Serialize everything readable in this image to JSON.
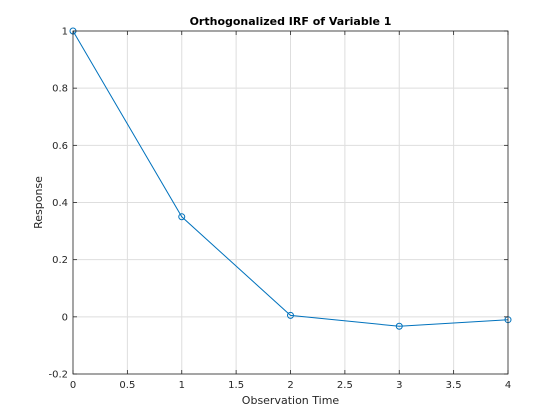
{
  "chart_data": {
    "type": "line",
    "title": "Orthogonalized IRF of Variable 1",
    "xlabel": "Observation Time",
    "ylabel": "Response",
    "x": [
      0,
      1,
      2,
      3,
      4
    ],
    "series": [
      {
        "values": [
          1.0,
          0.35,
          0.005,
          -0.033,
          -0.01
        ],
        "color": "#0072bd",
        "marker": "circle"
      }
    ],
    "xlim": [
      0,
      4
    ],
    "ylim": [
      -0.2,
      1
    ],
    "xticks": [
      0,
      0.5,
      1,
      1.5,
      2,
      2.5,
      3,
      3.5,
      4
    ],
    "xtick_labels": [
      "0",
      "0.5",
      "1",
      "1.5",
      "2",
      "2.5",
      "3",
      "3.5",
      "4"
    ],
    "yticks": [
      -0.2,
      0,
      0.2,
      0.4,
      0.6,
      0.8,
      1
    ],
    "ytick_labels": [
      "-0.2",
      "0",
      "0.2",
      "0.4",
      "0.6",
      "0.8",
      "1"
    ],
    "grid": true,
    "legend": false
  }
}
